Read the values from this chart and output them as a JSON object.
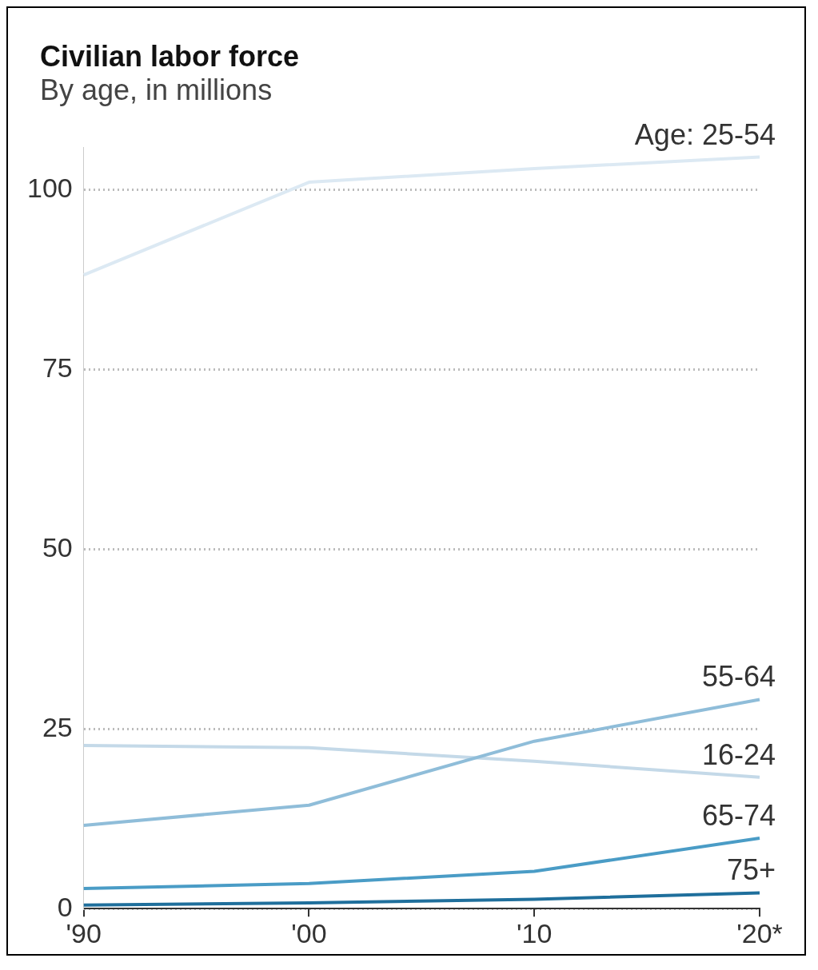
{
  "chart_data": {
    "type": "line",
    "title": "Civilian labor force",
    "subtitle": "By age, in millions",
    "categories": [
      "'90",
      "'00",
      "'10",
      "'20*"
    ],
    "series": [
      {
        "name": "Age: 25-54",
        "color": "#dce9f3",
        "values": [
          88.2,
          101.1,
          103,
          104.6
        ]
      },
      {
        "name": "55-64",
        "color": "#8fbdd9",
        "values": [
          11.6,
          14.4,
          23.3,
          29.1
        ]
      },
      {
        "name": "16-24",
        "color": "#c4d9e8",
        "values": [
          22.7,
          22.4,
          20.5,
          18.3
        ]
      },
      {
        "name": "65-74",
        "color": "#4a9cc6",
        "values": [
          2.8,
          3.5,
          5.2,
          9.8
        ]
      },
      {
        "name": "75+",
        "color": "#1f6f9c",
        "values": [
          0.5,
          0.8,
          1.3,
          2.2
        ]
      }
    ],
    "ylim": [
      0,
      106
    ],
    "yticks": [
      0,
      25,
      50,
      75,
      100
    ],
    "grid": "y",
    "legend": false,
    "marker": "none",
    "line_style": "solid"
  }
}
